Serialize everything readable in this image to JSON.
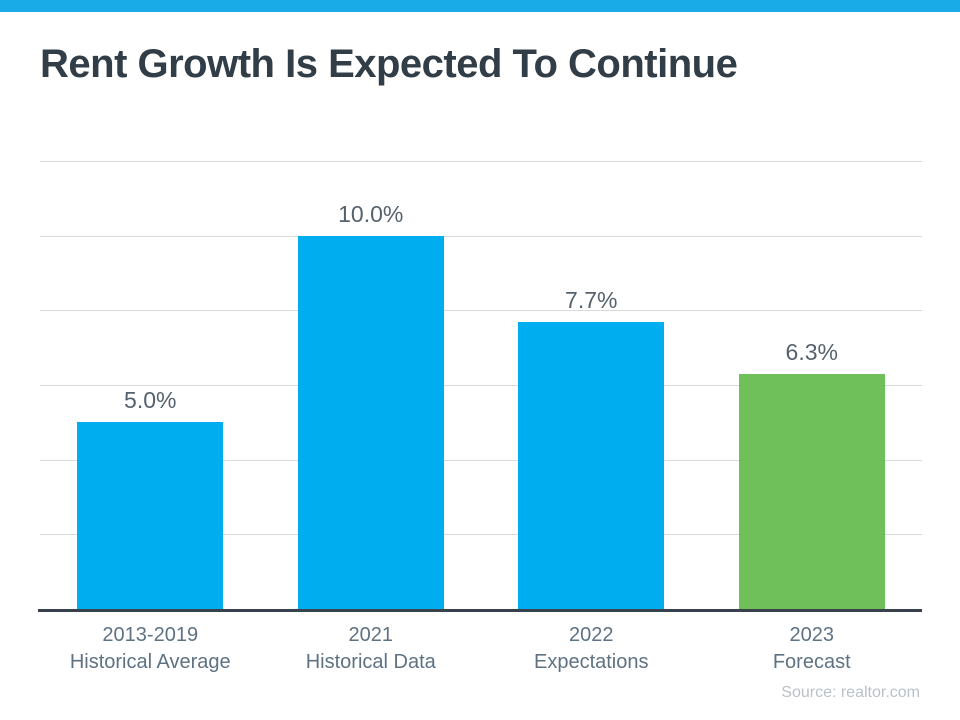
{
  "slide": {
    "accent_bar_color": "#18ABE8",
    "title": "Rent Growth Is Expected To Continue",
    "title_color": "#313D47",
    "source": "Source: realtor.com",
    "source_color": "#B9C1C9"
  },
  "chart_data": {
    "type": "bar",
    "title": "Rent Growth Is Expected To Continue",
    "categories": [
      "2013-2019 Historical Average",
      "2021 Historical Data",
      "2022 Expectations",
      "2023 Forecast"
    ],
    "category_lines": [
      [
        "2013-2019",
        "Historical Average"
      ],
      [
        "2021",
        "Historical Data"
      ],
      [
        "2022",
        "Expectations"
      ],
      [
        "2023",
        "Forecast"
      ]
    ],
    "values": [
      5.0,
      10.0,
      7.7,
      6.3
    ],
    "data_labels": [
      "5.0%",
      "10.0%",
      "7.7%",
      "6.3%"
    ],
    "bar_colors": [
      "#00AEEF",
      "#00AEEF",
      "#00AEEF",
      "#6FC05A"
    ],
    "ylim": [
      0,
      12
    ],
    "gridline_step": 2,
    "grid": true,
    "gridline_color": "#DADADA",
    "axis_line_color": "#37424C",
    "value_label_color": "#55626E",
    "category_label_color": "#5E7283",
    "legend": "none",
    "xlabel": "",
    "ylabel": "",
    "source": "Source: realtor.com"
  }
}
